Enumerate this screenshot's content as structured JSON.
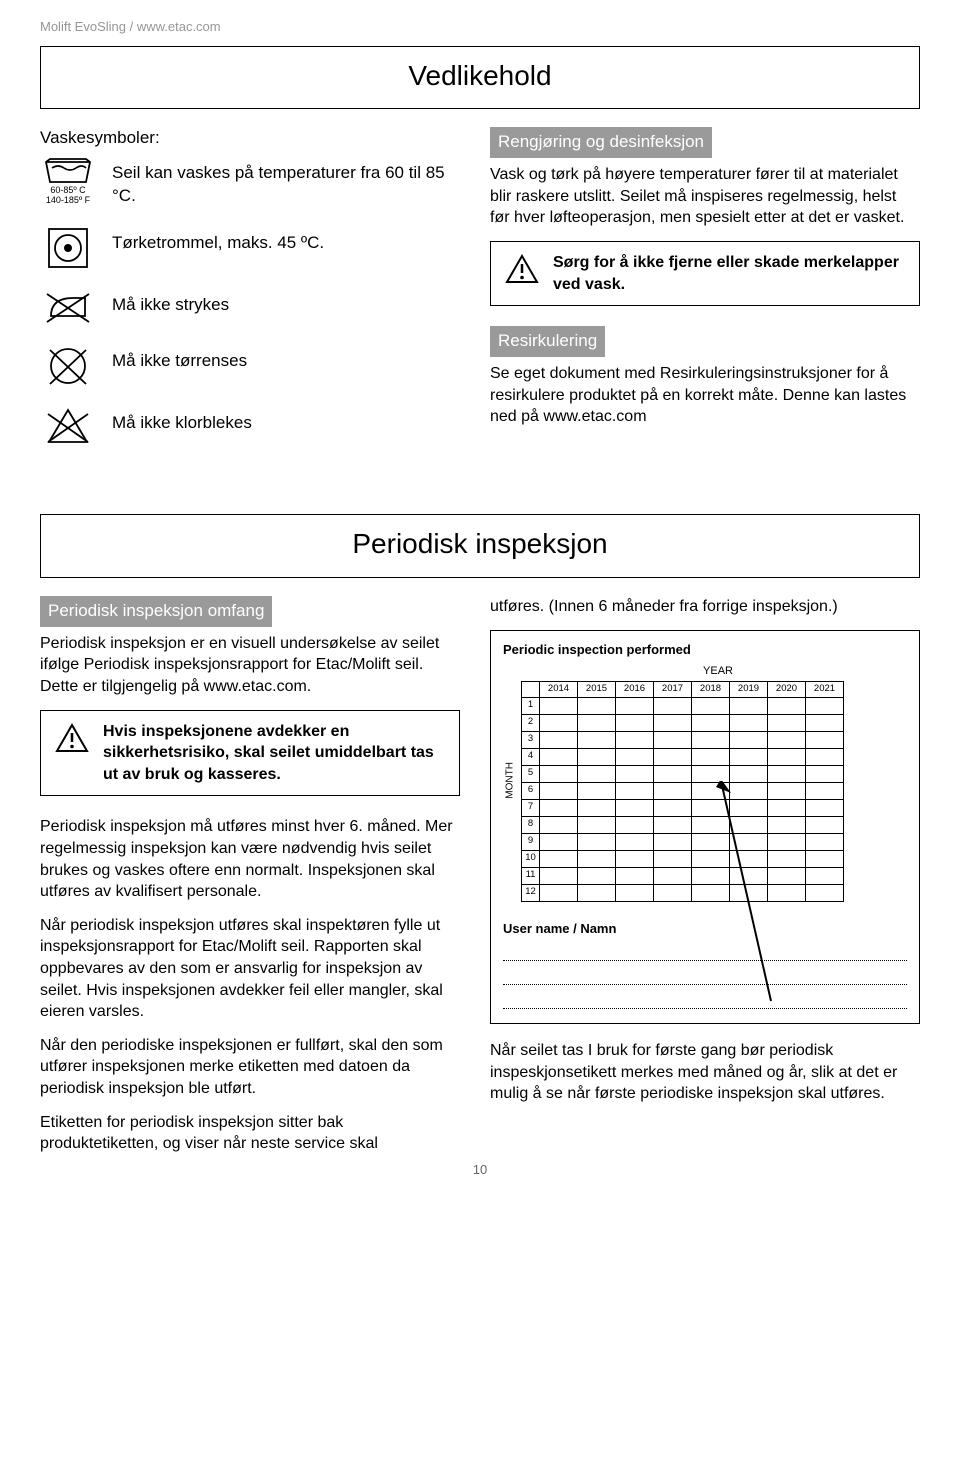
{
  "header": "Molift EvoSling / www.etac.com",
  "maintenance": {
    "title": "Vedlikehold",
    "wash_label": "Vaskesymboler:",
    "temp_line1": "60-85º C",
    "temp_line2": "140-185º F",
    "rows": [
      "Seil kan vaskes på temperaturer fra 60 til 85 °C.",
      "Tørketrommel, maks. 45 ºC.",
      "Må ikke strykes",
      "Må ikke tørrenses",
      "Må ikke klorblekes"
    ],
    "cleaning_tab": "Rengjøring og desinfeksjon",
    "cleaning_text": "Vask og tørk på høyere temperaturer fører til at materialet blir raskere utslitt. Seilet må inspiseres regelmessig, helst før hver løfteoperasjon, men spesielt etter at det er vasket.",
    "warn1": "Sørg for å ikke fjerne eller skade merkelapper ved vask.",
    "recycle_tab": "Resirkulering",
    "recycle_text": "Se eget dokument med Resirkuleringsinstruksjoner for å resirkulere produktet på en korrekt måte. Denne kan lastes ned på www.etac.com"
  },
  "inspection": {
    "title": "Periodisk inspeksjon",
    "scope_tab": "Periodisk inspeksjon omfang",
    "p1": "Periodisk inspeksjon er en visuell undersøkelse av seilet ifølge Periodisk inspeksjonsrapport for Etac/Molift seil. Dette er tilgjengelig på www.etac.com.",
    "warn2": "Hvis inspeksjonene avdekker en sikkerhetsrisiko, skal seilet umiddelbart tas ut av bruk og kasseres.",
    "p2": "Periodisk inspeksjon må utføres minst hver 6. måned. Mer regelmessig inspeksjon kan være nødvendig hvis seilet brukes og vaskes oftere enn normalt. Inspeksjonen skal utføres av kvalifisert personale.",
    "p3": "Når periodisk inspeksjon utføres skal inspektøren fylle ut inspeksjonsrapport for Etac/Molift seil. Rapporten skal oppbevares av den som er ansvarlig for inspeksjon av seilet. Hvis inspeksjonen avdekker feil eller mangler, skal eieren varsles.",
    "p4": "Når den periodiske inspeksjonen er fullført, skal den som utfører inspeksjonen merke etiketten med datoen da periodisk inspeksjon ble utført.",
    "p5": "Etiketten for periodisk inspeksjon sitter bak produktetiketten, og viser når neste service skal",
    "right_top": "utføres. (Innen 6 måneder fra forrige inspeksjon.)",
    "insp_box_title": "Periodic inspection performed",
    "year_label": "YEAR",
    "month_label": "MONTH",
    "years": [
      "2014",
      "2015",
      "2016",
      "2017",
      "2018",
      "2019",
      "2020",
      "2021"
    ],
    "months": [
      "1",
      "2",
      "3",
      "4",
      "5",
      "6",
      "7",
      "8",
      "9",
      "10",
      "11",
      "12"
    ],
    "user_name_label": "User name / Namn",
    "bottom_text": "Når seilet tas I bruk for første gang bør periodisk inspeskjonsetikett merkes med måned og år, slik at det er mulig å se når første periodiske inspeksjon skal utføres."
  },
  "page_number": "10"
}
